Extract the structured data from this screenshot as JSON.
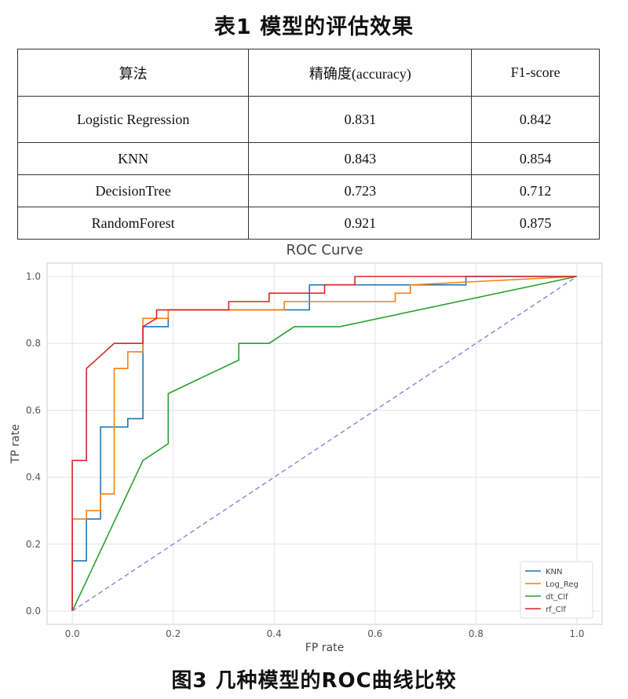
{
  "table": {
    "caption": "表1 模型的评估效果",
    "headers": [
      "算法",
      "精确度(accuracy)",
      "F1-score"
    ],
    "rows": [
      [
        "Logistic Regression",
        "0.831",
        "0.842"
      ],
      [
        "KNN",
        "0.843",
        "0.854"
      ],
      [
        "DecisionTree",
        "0.723",
        "0.712"
      ],
      [
        "RandomForest",
        "0.921",
        "0.875"
      ]
    ]
  },
  "chart_data": {
    "type": "line",
    "title": "ROC Curve",
    "xlabel": "FP rate",
    "ylabel": "TP rate",
    "xlim": [
      -0.05,
      1.05
    ],
    "ylim": [
      -0.04,
      1.04
    ],
    "xticks": [
      "0.0",
      "0.2",
      "0.4",
      "0.6",
      "0.8",
      "1.0"
    ],
    "yticks": [
      "0.0",
      "0.2",
      "0.4",
      "0.6",
      "0.8",
      "1.0"
    ],
    "grid": true,
    "legend_position": "lower-right",
    "series": [
      {
        "name": "KNN",
        "color": "#1f77b4",
        "points": [
          [
            0,
            0
          ],
          [
            0,
            0.15
          ],
          [
            0.028,
            0.15
          ],
          [
            0.028,
            0.275
          ],
          [
            0.056,
            0.275
          ],
          [
            0.056,
            0.55
          ],
          [
            0.11,
            0.55
          ],
          [
            0.11,
            0.575
          ],
          [
            0.14,
            0.575
          ],
          [
            0.14,
            0.85
          ],
          [
            0.19,
            0.85
          ],
          [
            0.19,
            0.9
          ],
          [
            0.47,
            0.9
          ],
          [
            0.47,
            0.975
          ],
          [
            0.78,
            0.975
          ],
          [
            0.78,
            1.0
          ],
          [
            1.0,
            1.0
          ]
        ]
      },
      {
        "name": "Log_Reg",
        "color": "#ff7f0e",
        "points": [
          [
            0,
            0
          ],
          [
            0,
            0.275
          ],
          [
            0.028,
            0.275
          ],
          [
            0.028,
            0.3
          ],
          [
            0.056,
            0.3
          ],
          [
            0.056,
            0.35
          ],
          [
            0.083,
            0.35
          ],
          [
            0.083,
            0.725
          ],
          [
            0.11,
            0.725
          ],
          [
            0.11,
            0.775
          ],
          [
            0.14,
            0.775
          ],
          [
            0.14,
            0.875
          ],
          [
            0.19,
            0.875
          ],
          [
            0.19,
            0.9
          ],
          [
            0.42,
            0.9
          ],
          [
            0.42,
            0.925
          ],
          [
            0.64,
            0.925
          ],
          [
            0.64,
            0.95
          ],
          [
            0.67,
            0.95
          ],
          [
            0.67,
            0.975
          ],
          [
            1.0,
            1.0
          ]
        ]
      },
      {
        "name": "dt_Clf",
        "color": "#2ca02c",
        "points": [
          [
            0,
            0
          ],
          [
            0.14,
            0.45
          ],
          [
            0.19,
            0.5
          ],
          [
            0.19,
            0.65
          ],
          [
            0.33,
            0.75
          ],
          [
            0.33,
            0.8
          ],
          [
            0.39,
            0.8
          ],
          [
            0.44,
            0.85
          ],
          [
            0.53,
            0.85
          ],
          [
            1.0,
            1.0
          ]
        ]
      },
      {
        "name": "rf_Clf",
        "color": "#d62728",
        "points": [
          [
            0,
            0
          ],
          [
            0,
            0.45
          ],
          [
            0.028,
            0.45
          ],
          [
            0.028,
            0.725
          ],
          [
            0.083,
            0.8
          ],
          [
            0.14,
            0.8
          ],
          [
            0.14,
            0.85
          ],
          [
            0.167,
            0.875
          ],
          [
            0.167,
            0.9
          ],
          [
            0.31,
            0.9
          ],
          [
            0.31,
            0.925
          ],
          [
            0.39,
            0.925
          ],
          [
            0.39,
            0.95
          ],
          [
            0.5,
            0.95
          ],
          [
            0.5,
            0.975
          ],
          [
            0.56,
            0.975
          ],
          [
            0.56,
            1.0
          ],
          [
            1.0,
            1.0
          ]
        ]
      },
      {
        "name": "",
        "color": "#8c8cd8",
        "dashed": true,
        "points": [
          [
            0,
            0
          ],
          [
            1,
            1
          ]
        ]
      }
    ]
  },
  "figure": {
    "caption": "图3 几种模型的ROC曲线比较"
  }
}
